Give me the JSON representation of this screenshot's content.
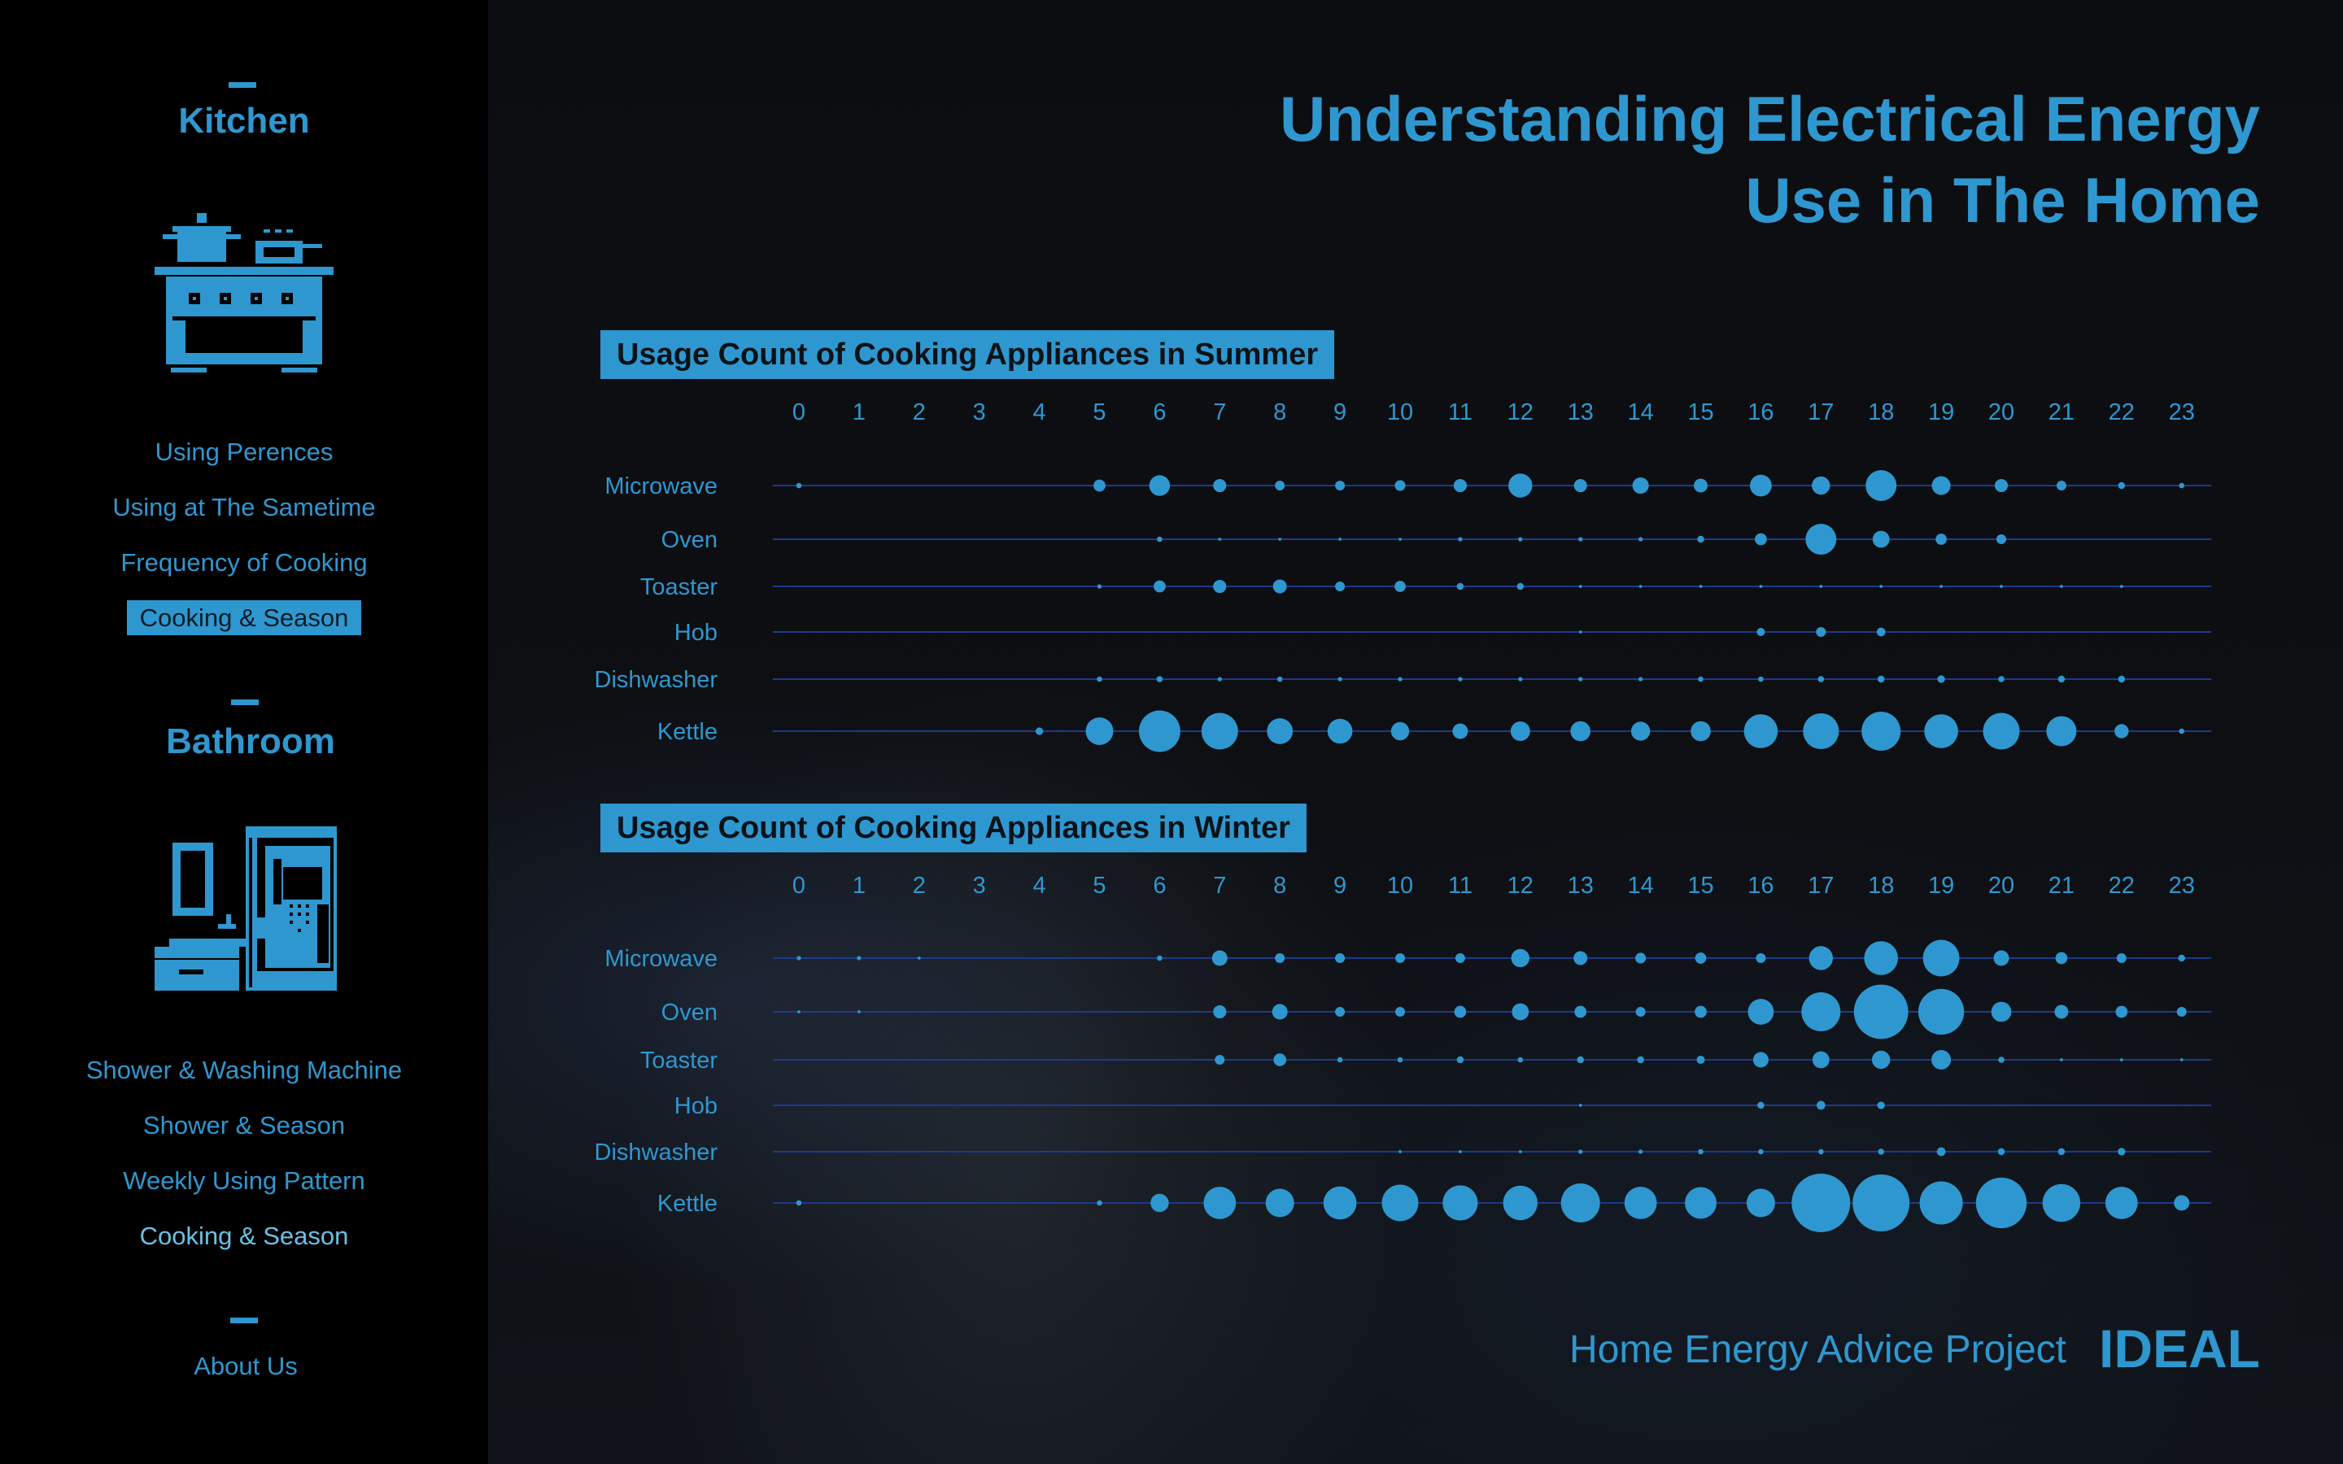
{
  "sidebar": {
    "kitchen": {
      "heading": "Kitchen",
      "links": [
        "Using Perences",
        "Using at The Sametime",
        "Frequency of Cooking",
        "Cooking & Season"
      ]
    },
    "bathroom": {
      "heading": "Bathroom",
      "links": [
        "Shower & Washing Machine",
        "Shower & Season",
        "Weekly Using Pattern",
        "Cooking & Season"
      ]
    },
    "about": "About Us"
  },
  "header": {
    "title_line1": "Understanding Electrical Energy",
    "title_line2": "Use in The Home"
  },
  "footer": {
    "project": "Home Energy Advice Project",
    "logo": "IDEAL"
  },
  "colors": {
    "accent": "#2f97cf",
    "line": "#1c3a8c",
    "background": "#0b0c0e"
  },
  "chart_data": [
    {
      "type": "scatter",
      "title": "Usage Count of Cooking Appliances in Summer",
      "hours": [
        "0",
        "1",
        "2",
        "3",
        "4",
        "5",
        "6",
        "7",
        "8",
        "9",
        "10",
        "11",
        "12",
        "13",
        "14",
        "15",
        "16",
        "17",
        "18",
        "19",
        "20",
        "21",
        "22",
        "23"
      ],
      "appliances": [
        "Microwave",
        "Oven",
        "Toaster",
        "Hob",
        "Dishwasher",
        "Kettle"
      ],
      "series": [
        {
          "name": "Microwave",
          "values": [
            0.3,
            0,
            0,
            0,
            0,
            1.5,
            4.5,
            1.8,
            1,
            1,
            1.2,
            1.8,
            6,
            1.8,
            2.8,
            2,
            5,
            3.5,
            10,
            3.7,
            1.8,
            1,
            0.5,
            0.3
          ]
        },
        {
          "name": "Oven",
          "values": [
            0,
            0,
            0,
            0,
            0,
            0,
            0.3,
            0.1,
            0.1,
            0.1,
            0.1,
            0.2,
            0.2,
            0.2,
            0.2,
            0.5,
            1.5,
            10,
            3,
            1.3,
            1,
            0,
            0,
            0
          ]
        },
        {
          "name": "Toaster",
          "values": [
            0,
            0,
            0,
            0,
            0,
            0.2,
            1.5,
            1.8,
            2,
            1,
            1.3,
            0.5,
            0.5,
            0.1,
            0.1,
            0.1,
            0.1,
            0.1,
            0.1,
            0.1,
            0.1,
            0.1,
            0.1,
            0
          ]
        },
        {
          "name": "Hob",
          "values": [
            0,
            0,
            0,
            0,
            0,
            0,
            0,
            0,
            0,
            0,
            0,
            0,
            0,
            0.1,
            0,
            0,
            0.7,
            1,
            0.8,
            0,
            0,
            0,
            0,
            0
          ]
        },
        {
          "name": "Dishwasher",
          "values": [
            0,
            0,
            0,
            0,
            0,
            0.3,
            0.4,
            0.2,
            0.3,
            0.2,
            0.2,
            0.2,
            0.2,
            0.2,
            0.2,
            0.3,
            0.3,
            0.4,
            0.5,
            0.6,
            0.4,
            0.5,
            0.5,
            0
          ]
        },
        {
          "name": "Kettle",
          "values": [
            0,
            0,
            0,
            0,
            0.6,
            8,
            18,
            14,
            7,
            6.5,
            3.5,
            2.5,
            4,
            4.2,
            3.8,
            4.2,
            12,
            13.5,
            16,
            12,
            14,
            9.5,
            2.1,
            0.3
          ]
        }
      ]
    },
    {
      "type": "scatter",
      "title": "Usage Count of Cooking Appliances in Winter",
      "hours": [
        "0",
        "1",
        "2",
        "3",
        "4",
        "5",
        "6",
        "7",
        "8",
        "9",
        "10",
        "11",
        "12",
        "13",
        "14",
        "15",
        "16",
        "17",
        "18",
        "19",
        "20",
        "21",
        "22",
        "23"
      ],
      "appliances": [
        "Microwave",
        "Oven",
        "Toaster",
        "Hob",
        "Dishwasher",
        "Kettle"
      ],
      "series": [
        {
          "name": "Microwave",
          "values": [
            0.2,
            0.2,
            0.1,
            0,
            0,
            0,
            0.3,
            2.5,
            1,
            1,
            1,
            1,
            3.5,
            2,
            1.2,
            1.3,
            1,
            6,
            12,
            14,
            2.5,
            1.5,
            1,
            0.5
          ]
        },
        {
          "name": "Oven",
          "values": [
            0.1,
            0.1,
            0,
            0,
            0,
            0,
            0,
            1.8,
            2.5,
            1,
            1,
            1.5,
            3,
            1.5,
            1,
            1.5,
            7,
            16,
            31,
            22,
            4.2,
            2,
            1.5,
            1
          ]
        },
        {
          "name": "Toaster",
          "values": [
            0,
            0,
            0,
            0,
            0,
            0,
            0,
            1,
            1.7,
            0.3,
            0.3,
            0.5,
            0.3,
            0.5,
            0.5,
            0.7,
            2.5,
            3,
            3.5,
            4,
            0.4,
            0.1,
            0.1,
            0.1
          ]
        },
        {
          "name": "Hob",
          "values": [
            0,
            0,
            0,
            0,
            0,
            0,
            0,
            0,
            0,
            0,
            0,
            0,
            0,
            0.1,
            0,
            0,
            0.5,
            0.8,
            0.6,
            0,
            0,
            0,
            0,
            0
          ]
        },
        {
          "name": "Dishwasher",
          "values": [
            0,
            0,
            0,
            0,
            0,
            0,
            0,
            0,
            0,
            0,
            0.1,
            0.1,
            0.1,
            0.2,
            0.2,
            0.3,
            0.3,
            0.3,
            0.4,
            0.8,
            0.5,
            0.5,
            0.6,
            0
          ]
        },
        {
          "name": "Kettle",
          "values": [
            0.3,
            0,
            0,
            0,
            0,
            0.3,
            3.5,
            11,
            8.5,
            11.5,
            14,
            13,
            12.5,
            16,
            11,
            10.5,
            8.5,
            36,
            34,
            19.5,
            27,
            15,
            11,
            2.5
          ]
        }
      ]
    }
  ]
}
